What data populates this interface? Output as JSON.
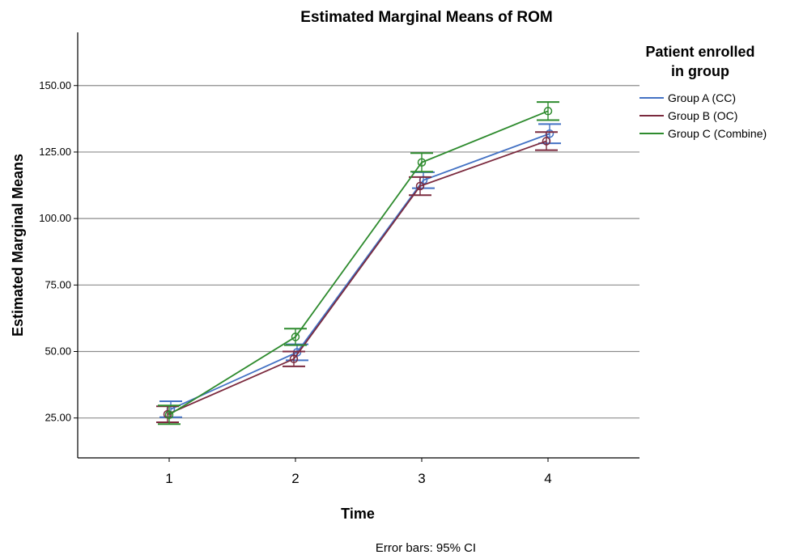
{
  "chart_data": {
    "type": "line",
    "title": "Estimated Marginal Means of ROM",
    "xlabel": "Time",
    "ylabel": "Estimated Marginal Means",
    "categories": [
      "1",
      "2",
      "3",
      "4"
    ],
    "ylim": [
      10,
      170
    ],
    "yticks": [
      25,
      50,
      75,
      100,
      125,
      150
    ],
    "ytick_labels": [
      "25.00",
      "50.00",
      "75.00",
      "100.00",
      "125.00",
      "150.00"
    ],
    "grid": "horizontal",
    "legend": {
      "title_line1": "Patient enrolled",
      "title_line2": "in group",
      "position": "right"
    },
    "footnote": "Error bars: 95% CI",
    "series": [
      {
        "name": "Group A (CC)",
        "color": "#4472c4",
        "values": [
          28.3,
          49.7,
          114.4,
          131.9
        ],
        "ci_low": [
          25.3,
          46.7,
          111.4,
          128.3
        ],
        "ci_high": [
          31.3,
          52.7,
          117.4,
          135.5
        ]
      },
      {
        "name": "Group B (OC)",
        "color": "#7b2a3e",
        "values": [
          26.4,
          47.2,
          112.2,
          129.1
        ],
        "ci_low": [
          23.4,
          44.4,
          108.8,
          125.7
        ],
        "ci_high": [
          29.4,
          50.0,
          115.6,
          132.5
        ]
      },
      {
        "name": "Group C (Combine)",
        "color": "#2e8b2e",
        "values": [
          26.2,
          55.5,
          121.1,
          140.4
        ],
        "ci_low": [
          22.7,
          52.4,
          117.6,
          137.0
        ],
        "ci_high": [
          29.7,
          58.6,
          124.6,
          143.8
        ]
      }
    ]
  }
}
